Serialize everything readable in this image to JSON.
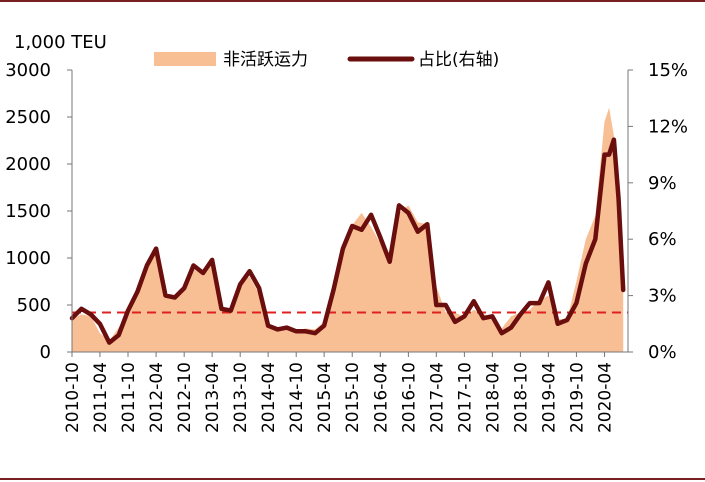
{
  "chart_data": {
    "type": "area",
    "unit_label": "1,000 TEU",
    "legend": {
      "placement": "top-center"
    },
    "y_left": {
      "min": 0,
      "max": 3000,
      "ticks": [
        "0",
        "500",
        "1000",
        "1500",
        "2000",
        "2500",
        "3000"
      ]
    },
    "y_right": {
      "min": 0,
      "max": 15,
      "ticks": [
        "0%",
        "3%",
        "6%",
        "9%",
        "12%",
        "15%"
      ]
    },
    "x_tick_labels": [
      "2010-10",
      "2011-04",
      "2011-10",
      "2012-04",
      "2012-10",
      "2013-04",
      "2013-10",
      "2014-04",
      "2014-10",
      "2015-04",
      "2015-10",
      "2016-04",
      "2016-10",
      "2017-04",
      "2017-10",
      "2018-04",
      "2018-10",
      "2019-04",
      "2019-10",
      "2020-04"
    ],
    "reference_line": {
      "value": 2.1,
      "axis": "right",
      "color": "#e02020",
      "style": "dashed"
    },
    "colors": {
      "area": "#f8bf95",
      "line": "#6b0e0e",
      "axis": "#777777"
    },
    "series": [
      {
        "name": "非活跃运力",
        "axis": "left",
        "style": "area",
        "x": [
          "2010-10",
          "2010-12",
          "2011-02",
          "2011-04",
          "2011-06",
          "2011-08",
          "2011-10",
          "2011-12",
          "2012-02",
          "2012-04",
          "2012-06",
          "2012-08",
          "2012-10",
          "2012-12",
          "2013-02",
          "2013-04",
          "2013-06",
          "2013-08",
          "2013-10",
          "2013-12",
          "2014-02",
          "2014-04",
          "2014-06",
          "2014-08",
          "2014-10",
          "2014-12",
          "2015-02",
          "2015-04",
          "2015-06",
          "2015-08",
          "2015-10",
          "2015-12",
          "2016-02",
          "2016-04",
          "2016-06",
          "2016-08",
          "2016-10",
          "2016-12",
          "2017-02",
          "2017-04",
          "2017-06",
          "2017-08",
          "2017-10",
          "2017-12",
          "2018-02",
          "2018-04",
          "2018-06",
          "2018-08",
          "2018-10",
          "2018-12",
          "2019-02",
          "2019-04",
          "2019-06",
          "2019-08",
          "2019-10",
          "2019-12",
          "2020-02",
          "2020-04",
          "2020-05",
          "2020-06",
          "2020-07",
          "2020-08"
        ],
        "values": [
          350,
          400,
          380,
          200,
          120,
          260,
          430,
          620,
          900,
          1080,
          580,
          560,
          680,
          880,
          820,
          960,
          460,
          440,
          750,
          800,
          620,
          300,
          240,
          260,
          230,
          250,
          240,
          320,
          700,
          1100,
          1350,
          1480,
          1330,
          1160,
          1050,
          1480,
          1560,
          1380,
          1360,
          700,
          420,
          420,
          370,
          450,
          400,
          380,
          250,
          380,
          420,
          450,
          550,
          600,
          350,
          350,
          750,
          1200,
          1450,
          2450,
          2600,
          2300,
          1800,
          1000
        ]
      },
      {
        "name": "占比(右轴)",
        "axis": "right",
        "style": "line",
        "x": [
          "2010-10",
          "2010-12",
          "2011-02",
          "2011-04",
          "2011-06",
          "2011-08",
          "2011-10",
          "2011-12",
          "2012-02",
          "2012-04",
          "2012-06",
          "2012-08",
          "2012-10",
          "2012-12",
          "2013-02",
          "2013-04",
          "2013-06",
          "2013-08",
          "2013-10",
          "2013-12",
          "2014-02",
          "2014-04",
          "2014-06",
          "2014-08",
          "2014-10",
          "2014-12",
          "2015-02",
          "2015-04",
          "2015-06",
          "2015-08",
          "2015-10",
          "2015-12",
          "2016-02",
          "2016-04",
          "2016-06",
          "2016-08",
          "2016-10",
          "2016-12",
          "2017-02",
          "2017-04",
          "2017-06",
          "2017-08",
          "2017-10",
          "2017-12",
          "2018-02",
          "2018-04",
          "2018-06",
          "2018-08",
          "2018-10",
          "2018-12",
          "2019-02",
          "2019-04",
          "2019-06",
          "2019-08",
          "2019-10",
          "2019-12",
          "2020-02",
          "2020-04",
          "2020-05",
          "2020-06",
          "2020-07",
          "2020-08"
        ],
        "values": [
          1.8,
          2.3,
          2.0,
          1.5,
          0.5,
          0.9,
          2.2,
          3.2,
          4.6,
          5.5,
          3.0,
          2.9,
          3.4,
          4.6,
          4.2,
          4.9,
          2.3,
          2.2,
          3.6,
          4.3,
          3.4,
          1.4,
          1.2,
          1.3,
          1.1,
          1.1,
          1.0,
          1.4,
          3.3,
          5.5,
          6.7,
          6.5,
          7.3,
          6.1,
          4.8,
          7.8,
          7.4,
          6.4,
          6.8,
          2.5,
          2.5,
          1.6,
          1.9,
          2.7,
          1.8,
          1.9,
          1.0,
          1.3,
          2.0,
          2.6,
          2.6,
          3.7,
          1.5,
          1.7,
          2.6,
          4.7,
          6.0,
          10.5,
          10.5,
          11.3,
          8.2,
          3.3
        ]
      }
    ]
  }
}
